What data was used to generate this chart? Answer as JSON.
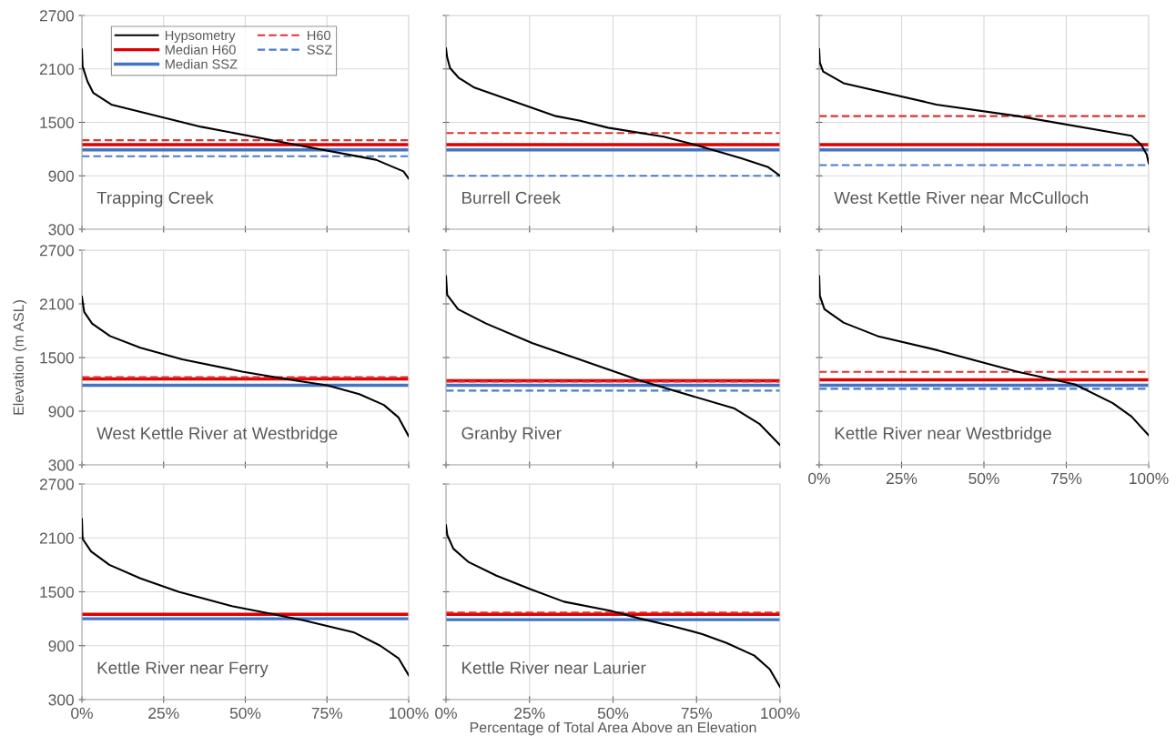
{
  "chart_data": [
    {
      "type": "line",
      "title": "Trapping Creek",
      "xlim": [
        0,
        100
      ],
      "ylim": [
        300,
        2700
      ],
      "xticks": [
        {
          "value": 0,
          "label": null
        },
        {
          "value": 25,
          "label": null
        },
        {
          "value": 50,
          "label": null
        },
        {
          "value": 75,
          "label": null
        },
        {
          "value": 100,
          "label": null
        }
      ],
      "yticks": [
        300,
        900,
        1500,
        2100,
        2700
      ],
      "grid": true,
      "tick_labels": "y",
      "legend": "top left",
      "series": [
        {
          "name": "Hypsometry",
          "color": "#000000",
          "line_style": "solid",
          "x": [
            0,
            0.2,
            1.7,
            3.5,
            9,
            36.5,
            63.8,
            90,
            98.4,
            100
          ],
          "values": [
            2320,
            2130,
            1960,
            1830,
            1700,
            1450,
            1260,
            1080,
            950,
            870
          ]
        },
        {
          "name": "Median H60",
          "color": "#e00000",
          "line_style": "solid",
          "x": [
            0,
            100
          ],
          "values": [
            1250,
            1250
          ]
        },
        {
          "name": "Median SSZ",
          "color": "#4472c4",
          "line_style": "solid",
          "x": [
            0,
            100
          ],
          "values": [
            1190,
            1190
          ]
        },
        {
          "name": "H60",
          "color": "#e03030",
          "line_style": "dashed",
          "x": [
            0,
            100
          ],
          "values": [
            1300,
            1300
          ]
        },
        {
          "name": "SSZ",
          "color": "#4a7cc7",
          "line_style": "dashed",
          "x": [
            0,
            100
          ],
          "values": [
            1120,
            1120
          ]
        }
      ]
    },
    {
      "type": "line",
      "title": "Burrell Creek",
      "xlim": [
        0,
        100
      ],
      "ylim": [
        300,
        2700
      ],
      "xticks": [
        {
          "value": 0,
          "label": null
        },
        {
          "value": 25,
          "label": null
        },
        {
          "value": 50,
          "label": null
        },
        {
          "value": 75,
          "label": null
        },
        {
          "value": 100,
          "label": null
        }
      ],
      "yticks": [
        {
          "value": 300,
          "label": null
        },
        {
          "value": 900,
          "label": null
        },
        {
          "value": 1500,
          "label": null
        },
        {
          "value": 2100,
          "label": null
        },
        {
          "value": 2700,
          "label": null
        }
      ],
      "grid": true,
      "tick_labels": false,
      "series": [
        {
          "color": "#000000",
          "line_style": "solid",
          "x": [
            0,
            0.35,
            1.2,
            3.8,
            8.5,
            32.9,
            39.9,
            48.5,
            65.2,
            74.4,
            88.2,
            96.3,
            100
          ],
          "values": [
            2330,
            2230,
            2110,
            2000,
            1890,
            1570,
            1520,
            1440,
            1340,
            1250,
            1100,
            1000,
            900
          ]
        },
        {
          "color": "#e00000",
          "line_style": "solid",
          "x": [
            0,
            100
          ],
          "values": [
            1250,
            1250
          ]
        },
        {
          "color": "#4472c4",
          "line_style": "solid",
          "x": [
            0,
            100
          ],
          "values": [
            1190,
            1190
          ]
        },
        {
          "color": "#e03030",
          "line_style": "dashed",
          "x": [
            0,
            100
          ],
          "values": [
            1380,
            1380
          ]
        },
        {
          "color": "#4a7cc7",
          "line_style": "dashed",
          "x": [
            0,
            100
          ],
          "values": [
            900,
            900
          ]
        }
      ]
    },
    {
      "type": "line",
      "title": "West Kettle River near McCulloch",
      "xlim": [
        0,
        100
      ],
      "ylim": [
        300,
        2700
      ],
      "xticks": [
        {
          "value": 0,
          "label": null
        },
        {
          "value": 25,
          "label": null
        },
        {
          "value": 50,
          "label": null
        },
        {
          "value": 75,
          "label": null
        },
        {
          "value": 100,
          "label": null
        }
      ],
      "yticks": [
        {
          "value": 300,
          "label": null
        },
        {
          "value": 900,
          "label": null
        },
        {
          "value": 1500,
          "label": null
        },
        {
          "value": 2100,
          "label": null
        },
        {
          "value": 2700,
          "label": null
        }
      ],
      "grid": true,
      "tick_labels": false,
      "series": [
        {
          "color": "#000000",
          "line_style": "solid",
          "x": [
            0,
            0.2,
            1.2,
            7.4,
            35.6,
            60.3,
            94.8,
            97.7,
            99.4,
            100
          ],
          "values": [
            2320,
            2170,
            2070,
            1940,
            1700,
            1570,
            1350,
            1250,
            1140,
            1040
          ]
        },
        {
          "color": "#e00000",
          "line_style": "solid",
          "x": [
            0,
            100
          ],
          "values": [
            1250,
            1250
          ]
        },
        {
          "color": "#4472c4",
          "line_style": "solid",
          "x": [
            0,
            100
          ],
          "values": [
            1190,
            1190
          ]
        },
        {
          "color": "#e03030",
          "line_style": "dashed",
          "x": [
            0,
            100
          ],
          "values": [
            1570,
            1570
          ]
        },
        {
          "color": "#4a7cc7",
          "line_style": "dashed",
          "x": [
            0,
            100
          ],
          "values": [
            1020,
            1020
          ]
        }
      ]
    },
    {
      "type": "line",
      "title": "West Kettle River at Westbridge",
      "ylabel": "Elevation (m ASL)",
      "xlim": [
        0,
        100
      ],
      "ylim": [
        300,
        2700
      ],
      "xticks": [
        {
          "value": 0,
          "label": null
        },
        {
          "value": 25,
          "label": null
        },
        {
          "value": 50,
          "label": null
        },
        {
          "value": 75,
          "label": null
        },
        {
          "value": 100,
          "label": null
        }
      ],
      "yticks": [
        300,
        900,
        1500,
        2100,
        2700
      ],
      "grid": true,
      "tick_labels": "y",
      "series": [
        {
          "color": "#000000",
          "line_style": "solid",
          "x": [
            0,
            0.7,
            3.1,
            8.6,
            17.9,
            30.7,
            49.4,
            65.7,
            75,
            84.9,
            92.4,
            96.9,
            100
          ],
          "values": [
            2180,
            2010,
            1880,
            1740,
            1610,
            1480,
            1340,
            1240,
            1190,
            1090,
            970,
            830,
            620
          ]
        },
        {
          "color": "#e00000",
          "line_style": "solid",
          "x": [
            0,
            100
          ],
          "values": [
            1260,
            1260
          ]
        },
        {
          "color": "#4472c4",
          "line_style": "solid",
          "x": [
            0,
            100
          ],
          "values": [
            1190,
            1190
          ]
        },
        {
          "color": "#e03030",
          "line_style": "dashed",
          "x": [
            0,
            100
          ],
          "values": [
            1280,
            1280
          ]
        }
      ]
    },
    {
      "type": "line",
      "title": "Granby River",
      "xlim": [
        0,
        100
      ],
      "ylim": [
        300,
        2700
      ],
      "xticks": [
        {
          "value": 0,
          "label": null
        },
        {
          "value": 25,
          "label": null
        },
        {
          "value": 50,
          "label": null
        },
        {
          "value": 75,
          "label": null
        },
        {
          "value": 100,
          "label": null
        }
      ],
      "yticks": [
        {
          "value": 300,
          "label": null
        },
        {
          "value": 900,
          "label": null
        },
        {
          "value": 1500,
          "label": null
        },
        {
          "value": 2100,
          "label": null
        },
        {
          "value": 2700,
          "label": null
        }
      ],
      "grid": true,
      "tick_labels": false,
      "series": [
        {
          "color": "#000000",
          "line_style": "solid",
          "x": [
            0,
            0.35,
            3.6,
            12,
            25.9,
            39.9,
            58.3,
            86.4,
            93.8,
            100
          ],
          "values": [
            2410,
            2200,
            2040,
            1880,
            1660,
            1480,
            1240,
            930,
            760,
            520
          ]
        },
        {
          "color": "#e00000",
          "line_style": "solid",
          "x": [
            0,
            100
          ],
          "values": [
            1240,
            1240
          ]
        },
        {
          "color": "#4472c4",
          "line_style": "solid",
          "x": [
            0,
            100
          ],
          "values": [
            1190,
            1190
          ]
        },
        {
          "color": "#e03030",
          "line_style": "dashed",
          "x": [
            0,
            100
          ],
          "values": [
            1230,
            1230
          ]
        },
        {
          "color": "#4a7cc7",
          "line_style": "dashed",
          "x": [
            0,
            100
          ],
          "values": [
            1130,
            1130
          ]
        }
      ]
    },
    {
      "type": "line",
      "title": "Kettle River near Westbridge",
      "xlim": [
        0,
        100
      ],
      "ylim": [
        300,
        2700
      ],
      "xticks": [
        {
          "value": 0,
          "label": "0%"
        },
        {
          "value": 25,
          "label": "25%"
        },
        {
          "value": 50,
          "label": "50%"
        },
        {
          "value": 75,
          "label": "75%"
        },
        {
          "value": 100,
          "label": "100%"
        }
      ],
      "yticks": [
        {
          "value": 300,
          "label": null
        },
        {
          "value": 900,
          "label": null
        },
        {
          "value": 1500,
          "label": null
        },
        {
          "value": 2100,
          "label": null
        },
        {
          "value": 2700,
          "label": null
        }
      ],
      "grid": true,
      "tick_labels": "x",
      "series": [
        {
          "color": "#000000",
          "line_style": "solid",
          "x": [
            0,
            0.2,
            1.6,
            7.4,
            17.7,
            36.1,
            60.3,
            77.6,
            89.1,
            94.8,
            100
          ],
          "values": [
            2410,
            2190,
            2040,
            1890,
            1740,
            1580,
            1340,
            1200,
            990,
            840,
            630
          ]
        },
        {
          "color": "#e00000",
          "line_style": "solid",
          "x": [
            0,
            100
          ],
          "values": [
            1250,
            1250
          ]
        },
        {
          "color": "#4472c4",
          "line_style": "solid",
          "x": [
            0,
            100
          ],
          "values": [
            1190,
            1190
          ]
        },
        {
          "color": "#e03030",
          "line_style": "dashed",
          "x": [
            0,
            100
          ],
          "values": [
            1340,
            1340
          ]
        },
        {
          "color": "#4a7cc7",
          "line_style": "dashed",
          "x": [
            0,
            100
          ],
          "values": [
            1150,
            1150
          ]
        }
      ]
    },
    {
      "type": "line",
      "title": "Kettle River near Ferry",
      "xlim": [
        0,
        100
      ],
      "ylim": [
        300,
        2700
      ],
      "xticks": [
        {
          "value": 0,
          "label": "0%"
        },
        {
          "value": 25,
          "label": "25%"
        },
        {
          "value": 50,
          "label": "50%"
        },
        {
          "value": 75,
          "label": "75%"
        },
        {
          "value": 100,
          "label": "100%"
        }
      ],
      "yticks": [
        300,
        900,
        1500,
        2100,
        2700
      ],
      "grid": true,
      "series": [
        {
          "color": "#000000",
          "line_style": "solid",
          "x": [
            0,
            0.2,
            2.8,
            8.4,
            17.9,
            29.6,
            45.9,
            58.7,
            68,
            83.1,
            91.3,
            96.9,
            100
          ],
          "values": [
            2310,
            2090,
            1950,
            1800,
            1650,
            1500,
            1340,
            1250,
            1180,
            1050,
            900,
            760,
            570
          ]
        },
        {
          "color": "#e00000",
          "line_style": "solid",
          "x": [
            0,
            100
          ],
          "values": [
            1250,
            1250
          ]
        },
        {
          "color": "#4472c4",
          "line_style": "solid",
          "x": [
            0,
            100
          ],
          "values": [
            1200,
            1200
          ]
        }
      ]
    },
    {
      "type": "line",
      "title": "Kettle River near Laurier",
      "xlabel": "Percentage of Total Area Above an Elevation",
      "xlim": [
        0,
        100
      ],
      "ylim": [
        300,
        2700
      ],
      "xticks": [
        {
          "value": 0,
          "label": "0%"
        },
        {
          "value": 25,
          "label": "25%"
        },
        {
          "value": 50,
          "label": "50%"
        },
        {
          "value": 75,
          "label": "75%"
        },
        {
          "value": 100,
          "label": "100%"
        }
      ],
      "yticks": [
        {
          "value": 300,
          "label": null
        },
        {
          "value": 900,
          "label": null
        },
        {
          "value": 1500,
          "label": null
        },
        {
          "value": 2100,
          "label": null
        },
        {
          "value": 2700,
          "label": null
        }
      ],
      "grid": true,
      "tick_labels": "x",
      "series": [
        {
          "color": "#000000",
          "line_style": "solid",
          "x": [
            0,
            0.4,
            2.2,
            6.8,
            15.1,
            25.2,
            35.3,
            49.1,
            58.3,
            67.5,
            76.7,
            84,
            92.3,
            96.9,
            100
          ],
          "values": [
            2240,
            2130,
            1980,
            1830,
            1680,
            1530,
            1390,
            1290,
            1200,
            1120,
            1030,
            930,
            790,
            640,
            440
          ]
        },
        {
          "color": "#e00000",
          "line_style": "solid",
          "x": [
            0,
            100
          ],
          "values": [
            1250,
            1250
          ]
        },
        {
          "color": "#4472c4",
          "line_style": "solid",
          "x": [
            0,
            100
          ],
          "values": [
            1190,
            1190
          ]
        },
        {
          "color": "#e03030",
          "line_style": "dashed",
          "x": [
            0,
            100
          ],
          "values": [
            1270,
            1270
          ]
        }
      ]
    }
  ]
}
